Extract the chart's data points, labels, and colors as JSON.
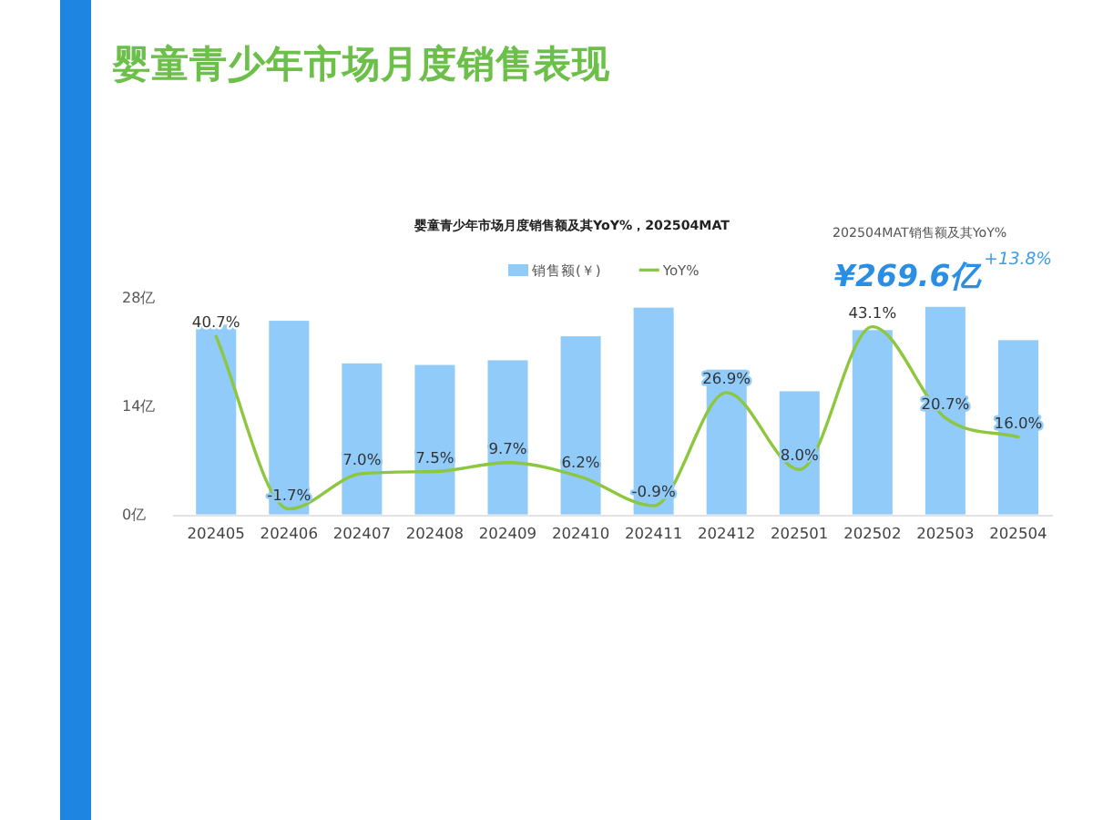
{
  "chart_data": {
    "type": "bar",
    "title": "婴童青少年市场月度销售表现",
    "subtitle": "婴童青少年市场月度销售额及其YoY%，202504MAT",
    "categories": [
      "202405",
      "202406",
      "202407",
      "202408",
      "202409",
      "202410",
      "202411",
      "202412",
      "202501",
      "202502",
      "202503",
      "202504"
    ],
    "series": [
      {
        "name": "销售额(￥)",
        "color": "#90cbf9",
        "values": [
          24.5,
          25.0,
          19.5,
          19.3,
          19.9,
          23.0,
          26.7,
          18.7,
          15.9,
          23.8,
          26.8,
          22.5
        ]
      },
      {
        "name": "YoY%",
        "type": "line",
        "axis": "y2",
        "color": "#8dc63f",
        "values": [
          40.7,
          -1.7,
          7.0,
          7.5,
          9.7,
          6.2,
          -0.9,
          26.9,
          8.0,
          43.1,
          20.7,
          16.0
        ],
        "value_labels": [
          "40.7%",
          "-1.7%",
          "7.0%",
          "7.5%",
          "9.7%",
          "6.2%",
          "-0.9%",
          "26.9%",
          "8.0%",
          "43.1%",
          "20.7%",
          "16.0%"
        ]
      }
    ],
    "ylim": [
      0,
      28
    ],
    "yticks": [
      {
        "value": 0,
        "label": "0亿"
      },
      {
        "value": 14,
        "label": "14亿"
      },
      {
        "value": 28,
        "label": "28亿"
      }
    ],
    "legend": "top",
    "marker": "none",
    "line_style": "solid",
    "annotations": [
      "202504MAT销售额及其YoY%",
      "¥269.6亿",
      "+13.8%"
    ]
  }
}
